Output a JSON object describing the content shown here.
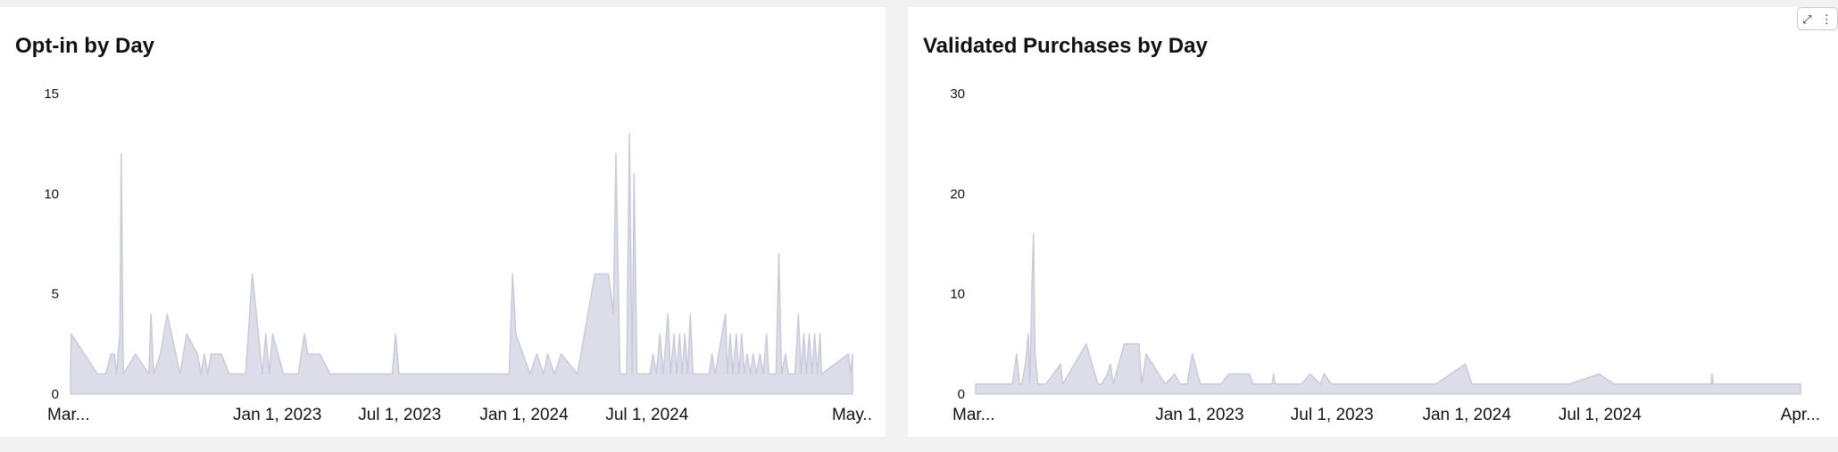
{
  "panels": [
    {
      "title": "Opt-in by Day"
    },
    {
      "title": "Validated Purchases by Day"
    }
  ],
  "controls": {
    "expand_icon": "⤢",
    "menu_icon": "⋮"
  },
  "colors": {
    "area_fill": "#dcdde9",
    "area_stroke": "#c9cbdc",
    "background": "#f2f2f2",
    "panel": "#ffffff"
  },
  "chart_data": [
    {
      "type": "area",
      "title": "Opt-in by Day",
      "xlabel": "",
      "ylabel": "",
      "ylim": [
        0,
        15
      ],
      "yticks": [
        0,
        5,
        10,
        15
      ],
      "xlim": [
        "2022-03-01",
        "2025-05-01"
      ],
      "xtick_labels": [
        {
          "date": "2022-03-01",
          "label": "Mar..."
        },
        {
          "date": "2023-01-01",
          "label": "Jan 1, 2023"
        },
        {
          "date": "2023-07-01",
          "label": "Jul 1, 2023"
        },
        {
          "date": "2024-01-01",
          "label": "Jan 1, 2024"
        },
        {
          "date": "2024-07-01",
          "label": "Jul 1, 2024"
        },
        {
          "date": "2025-05-01",
          "label": "May.."
        }
      ],
      "grid": false,
      "series": [
        {
          "points": [
            [
              "2022-03-01",
              1
            ],
            [
              "2022-03-02",
              3
            ],
            [
              "2022-04-10",
              1
            ],
            [
              "2022-04-22",
              1
            ],
            [
              "2022-04-30",
              2
            ],
            [
              "2022-05-05",
              2
            ],
            [
              "2022-05-08",
              1
            ],
            [
              "2022-05-13",
              3
            ],
            [
              "2022-05-15",
              12
            ],
            [
              "2022-05-18",
              1
            ],
            [
              "2022-06-05",
              2
            ],
            [
              "2022-06-25",
              1
            ],
            [
              "2022-06-28",
              4
            ],
            [
              "2022-07-02",
              1
            ],
            [
              "2022-07-12",
              2
            ],
            [
              "2022-07-22",
              4
            ],
            [
              "2022-08-10",
              1
            ],
            [
              "2022-08-20",
              3
            ],
            [
              "2022-09-05",
              2
            ],
            [
              "2022-09-10",
              1
            ],
            [
              "2022-09-15",
              2
            ],
            [
              "2022-09-20",
              1
            ],
            [
              "2022-09-25",
              2
            ],
            [
              "2022-10-10",
              2
            ],
            [
              "2022-10-22",
              1
            ],
            [
              "2022-11-15",
              1
            ],
            [
              "2022-11-25",
              6
            ],
            [
              "2022-12-10",
              1
            ],
            [
              "2022-12-15",
              3
            ],
            [
              "2022-12-20",
              1
            ],
            [
              "2022-12-25",
              3
            ],
            [
              "2023-01-10",
              1
            ],
            [
              "2023-02-01",
              1
            ],
            [
              "2023-02-10",
              3
            ],
            [
              "2023-02-15",
              2
            ],
            [
              "2023-03-05",
              2
            ],
            [
              "2023-03-20",
              1
            ],
            [
              "2023-06-20",
              1
            ],
            [
              "2023-06-25",
              3
            ],
            [
              "2023-06-30",
              1
            ],
            [
              "2023-12-10",
              1
            ],
            [
              "2023-12-15",
              6
            ],
            [
              "2023-12-20",
              3
            ],
            [
              "2024-01-10",
              1
            ],
            [
              "2024-01-20",
              2
            ],
            [
              "2024-01-30",
              1
            ],
            [
              "2024-02-05",
              2
            ],
            [
              "2024-02-15",
              1
            ],
            [
              "2024-02-25",
              2
            ],
            [
              "2024-03-20",
              1
            ],
            [
              "2024-04-15",
              6
            ],
            [
              "2024-05-05",
              6
            ],
            [
              "2024-05-12",
              4
            ],
            [
              "2024-05-16",
              12
            ],
            [
              "2024-05-22",
              1
            ],
            [
              "2024-06-01",
              1
            ],
            [
              "2024-06-05",
              13
            ],
            [
              "2024-06-09",
              1
            ],
            [
              "2024-06-12",
              11
            ],
            [
              "2024-06-16",
              1
            ],
            [
              "2024-07-05",
              1
            ],
            [
              "2024-07-10",
              2
            ],
            [
              "2024-07-15",
              1
            ],
            [
              "2024-07-20",
              3
            ],
            [
              "2024-07-25",
              1
            ],
            [
              "2024-08-01",
              4
            ],
            [
              "2024-08-05",
              1
            ],
            [
              "2024-08-10",
              3
            ],
            [
              "2024-08-14",
              1
            ],
            [
              "2024-08-18",
              3
            ],
            [
              "2024-08-22",
              1
            ],
            [
              "2024-08-26",
              3
            ],
            [
              "2024-08-30",
              1
            ],
            [
              "2024-09-03",
              4
            ],
            [
              "2024-09-07",
              1
            ],
            [
              "2024-10-01",
              1
            ],
            [
              "2024-10-05",
              2
            ],
            [
              "2024-10-10",
              1
            ],
            [
              "2024-10-25",
              4
            ],
            [
              "2024-10-28",
              1
            ],
            [
              "2024-11-01",
              3
            ],
            [
              "2024-11-05",
              1
            ],
            [
              "2024-11-10",
              3
            ],
            [
              "2024-11-14",
              1
            ],
            [
              "2024-11-18",
              3
            ],
            [
              "2024-11-22",
              1
            ],
            [
              "2024-11-26",
              2
            ],
            [
              "2024-12-01",
              1
            ],
            [
              "2024-12-05",
              2
            ],
            [
              "2024-12-10",
              1
            ],
            [
              "2024-12-15",
              2
            ],
            [
              "2024-12-20",
              1
            ],
            [
              "2024-12-25",
              3
            ],
            [
              "2024-12-28",
              1
            ],
            [
              "2025-01-08",
              1
            ],
            [
              "2025-01-12",
              7
            ],
            [
              "2025-01-16",
              1
            ],
            [
              "2025-01-22",
              2
            ],
            [
              "2025-01-26",
              1
            ],
            [
              "2025-02-05",
              1
            ],
            [
              "2025-02-10",
              4
            ],
            [
              "2025-02-14",
              1
            ],
            [
              "2025-02-18",
              3
            ],
            [
              "2025-02-22",
              1
            ],
            [
              "2025-02-26",
              3
            ],
            [
              "2025-03-02",
              1
            ],
            [
              "2025-03-06",
              3
            ],
            [
              "2025-03-10",
              1
            ],
            [
              "2025-03-14",
              3
            ],
            [
              "2025-03-16",
              1
            ],
            [
              "2025-04-25",
              2
            ],
            [
              "2025-04-28",
              1
            ],
            [
              "2025-05-01",
              2
            ]
          ]
        }
      ]
    },
    {
      "type": "area",
      "title": "Validated Purchases by Day",
      "xlabel": "",
      "ylabel": "",
      "ylim": [
        0,
        30
      ],
      "yticks": [
        0,
        10,
        20,
        30
      ],
      "xlim": [
        "2022-03-01",
        "2025-04-01"
      ],
      "xtick_labels": [
        {
          "date": "2022-03-01",
          "label": "Mar..."
        },
        {
          "date": "2023-01-01",
          "label": "Jan 1, 2023"
        },
        {
          "date": "2023-07-01",
          "label": "Jul 1, 2023"
        },
        {
          "date": "2024-01-01",
          "label": "Jan 1, 2024"
        },
        {
          "date": "2024-07-01",
          "label": "Jul 1, 2024"
        },
        {
          "date": "2025-04-01",
          "label": "Apr..."
        }
      ],
      "grid": false,
      "series": [
        {
          "points": [
            [
              "2022-03-01",
              1
            ],
            [
              "2022-04-20",
              1
            ],
            [
              "2022-04-26",
              4
            ],
            [
              "2022-04-30",
              1
            ],
            [
              "2022-05-03",
              1
            ],
            [
              "2022-05-08",
              3
            ],
            [
              "2022-05-12",
              6
            ],
            [
              "2022-05-14",
              1
            ],
            [
              "2022-05-17",
              11
            ],
            [
              "2022-05-19",
              16
            ],
            [
              "2022-05-21",
              4
            ],
            [
              "2022-05-25",
              1
            ],
            [
              "2022-06-05",
              1
            ],
            [
              "2022-06-25",
              3
            ],
            [
              "2022-06-28",
              1
            ],
            [
              "2022-07-30",
              5
            ],
            [
              "2022-08-15",
              1
            ],
            [
              "2022-08-20",
              1
            ],
            [
              "2022-08-28",
              2
            ],
            [
              "2022-09-01",
              3
            ],
            [
              "2022-09-05",
              1
            ],
            [
              "2022-09-20",
              5
            ],
            [
              "2022-10-10",
              5
            ],
            [
              "2022-10-14",
              1
            ],
            [
              "2022-10-20",
              4
            ],
            [
              "2022-11-15",
              1
            ],
            [
              "2022-11-28",
              2
            ],
            [
              "2022-12-05",
              1
            ],
            [
              "2022-12-15",
              1
            ],
            [
              "2022-12-22",
              4
            ],
            [
              "2023-01-02",
              1
            ],
            [
              "2023-01-30",
              1
            ],
            [
              "2023-02-10",
              2
            ],
            [
              "2023-03-10",
              2
            ],
            [
              "2023-03-15",
              1
            ],
            [
              "2023-04-10",
              1
            ],
            [
              "2023-04-12",
              2
            ],
            [
              "2023-04-14",
              1
            ],
            [
              "2023-05-20",
              1
            ],
            [
              "2023-06-01",
              2
            ],
            [
              "2023-06-15",
              1
            ],
            [
              "2023-06-20",
              2
            ],
            [
              "2023-06-30",
              1
            ],
            [
              "2023-11-20",
              1
            ],
            [
              "2023-12-30",
              3
            ],
            [
              "2024-01-08",
              1
            ],
            [
              "2024-05-20",
              1
            ],
            [
              "2024-06-30",
              2
            ],
            [
              "2024-07-20",
              1
            ],
            [
              "2024-11-30",
              1
            ],
            [
              "2024-12-01",
              2
            ],
            [
              "2024-12-03",
              1
            ],
            [
              "2025-04-01",
              1
            ]
          ]
        }
      ]
    }
  ]
}
